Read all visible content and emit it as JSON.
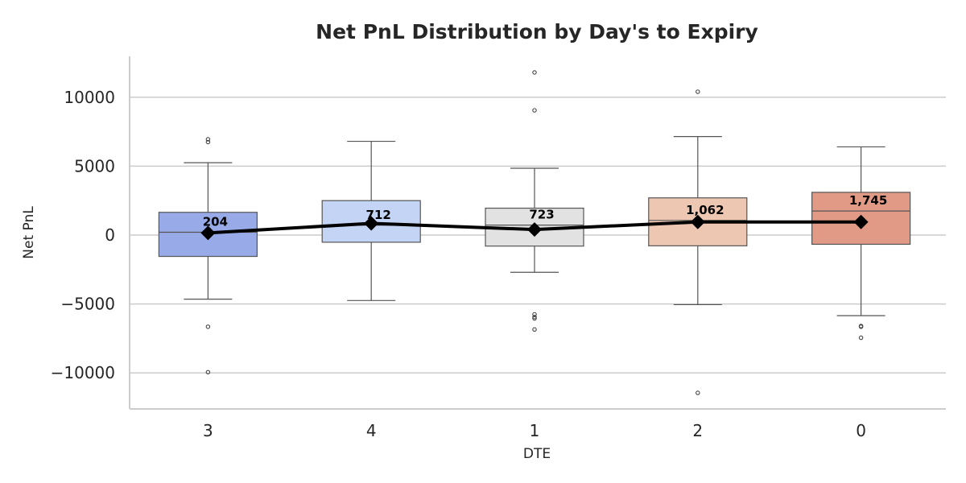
{
  "chart_data": {
    "type": "box",
    "title": "Net PnL Distribution by Day's to Expiry",
    "xlabel": "DTE",
    "ylabel": "Net PnL",
    "ylim": [
      -12600,
      13000
    ],
    "yticks": [
      10000,
      5000,
      0,
      -5000,
      -10000
    ],
    "ytick_labels": [
      "10000",
      "5000",
      "0",
      "−5000",
      "−10000"
    ],
    "grid": "horizontal",
    "categories": [
      "3",
      "4",
      "1",
      "2",
      "0"
    ],
    "boxes": [
      {
        "category": "3",
        "color": "#98ABE8",
        "q1": -1550,
        "median": 204,
        "q3": 1650,
        "whisker_low": -4650,
        "whisker_high": 5250,
        "outliers": [
          6950,
          6750,
          -6650,
          -9950
        ],
        "mean": 150,
        "median_label": "204"
      },
      {
        "category": "4",
        "color": "#C3D4F4",
        "q1": -520,
        "median": 712,
        "q3": 2500,
        "whisker_low": -4750,
        "whisker_high": 6800,
        "outliers": [],
        "mean": 850,
        "median_label": "712"
      },
      {
        "category": "1",
        "color": "#E2E2E2",
        "q1": -800,
        "median": 723,
        "q3": 1950,
        "whisker_low": -2700,
        "whisker_high": 4850,
        "outliers": [
          11800,
          9050,
          -5750,
          -5950,
          -6050,
          -6850
        ],
        "mean": 400,
        "median_label": "723"
      },
      {
        "category": "2",
        "color": "#EEC7B3",
        "q1": -780,
        "median": 1062,
        "q3": 2700,
        "whisker_low": -5050,
        "whisker_high": 7150,
        "outliers": [
          10400,
          -11450
        ],
        "mean": 950,
        "median_label": "1,062"
      },
      {
        "category": "0",
        "color": "#E19A86",
        "q1": -670,
        "median": 1745,
        "q3": 3100,
        "whisker_low": -5850,
        "whisker_high": 6400,
        "outliers": [
          -6600,
          -6650,
          -7450
        ],
        "mean": 950,
        "median_label": "1,745"
      }
    ],
    "mean_line_color": "#000000",
    "mean_marker": "diamond"
  }
}
